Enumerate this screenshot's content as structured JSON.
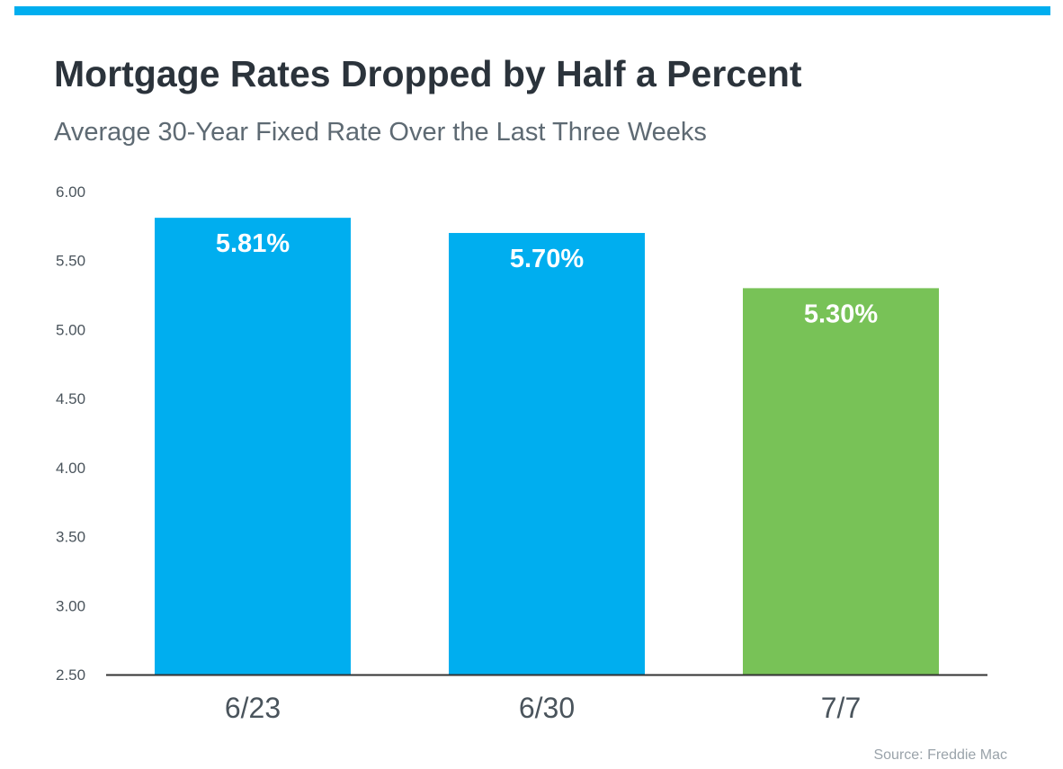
{
  "title": "Mortgage Rates Dropped by Half a Percent",
  "subtitle": "Average 30-Year Fixed Rate Over the Last Three Weeks",
  "source": "Source: Freddie Mac",
  "colors": {
    "accent_bar": "#00aeef",
    "bar_blue": "#00aeef",
    "bar_green": "#78c257",
    "axis": "#333333",
    "tick_text": "#4a545c",
    "category_text": "#4a545c",
    "title_text": "#2b333b",
    "subtitle_text": "#5e6a73",
    "source_text": "#9aa3aa"
  },
  "chart_data": {
    "type": "bar",
    "title": "Mortgage Rates Dropped by Half a Percent",
    "subtitle": "Average 30-Year Fixed Rate Over the Last Three Weeks",
    "xlabel": "",
    "ylabel": "",
    "categories": [
      "6/23",
      "6/30",
      "7/7"
    ],
    "values": [
      5.81,
      5.7,
      5.3
    ],
    "data_labels": [
      "5.81%",
      "5.70%",
      "5.30%"
    ],
    "bar_colors": [
      "#00aeef",
      "#00aeef",
      "#78c257"
    ],
    "ylim": [
      2.5,
      6.0
    ],
    "y_ticks": [
      2.5,
      3.0,
      3.5,
      4.0,
      4.5,
      5.0,
      5.5,
      6.0
    ],
    "y_tick_labels": [
      "2.50",
      "3.00",
      "3.50",
      "4.00",
      "4.50",
      "5.00",
      "5.50",
      "6.00"
    ],
    "grid": false,
    "legend": "none"
  }
}
